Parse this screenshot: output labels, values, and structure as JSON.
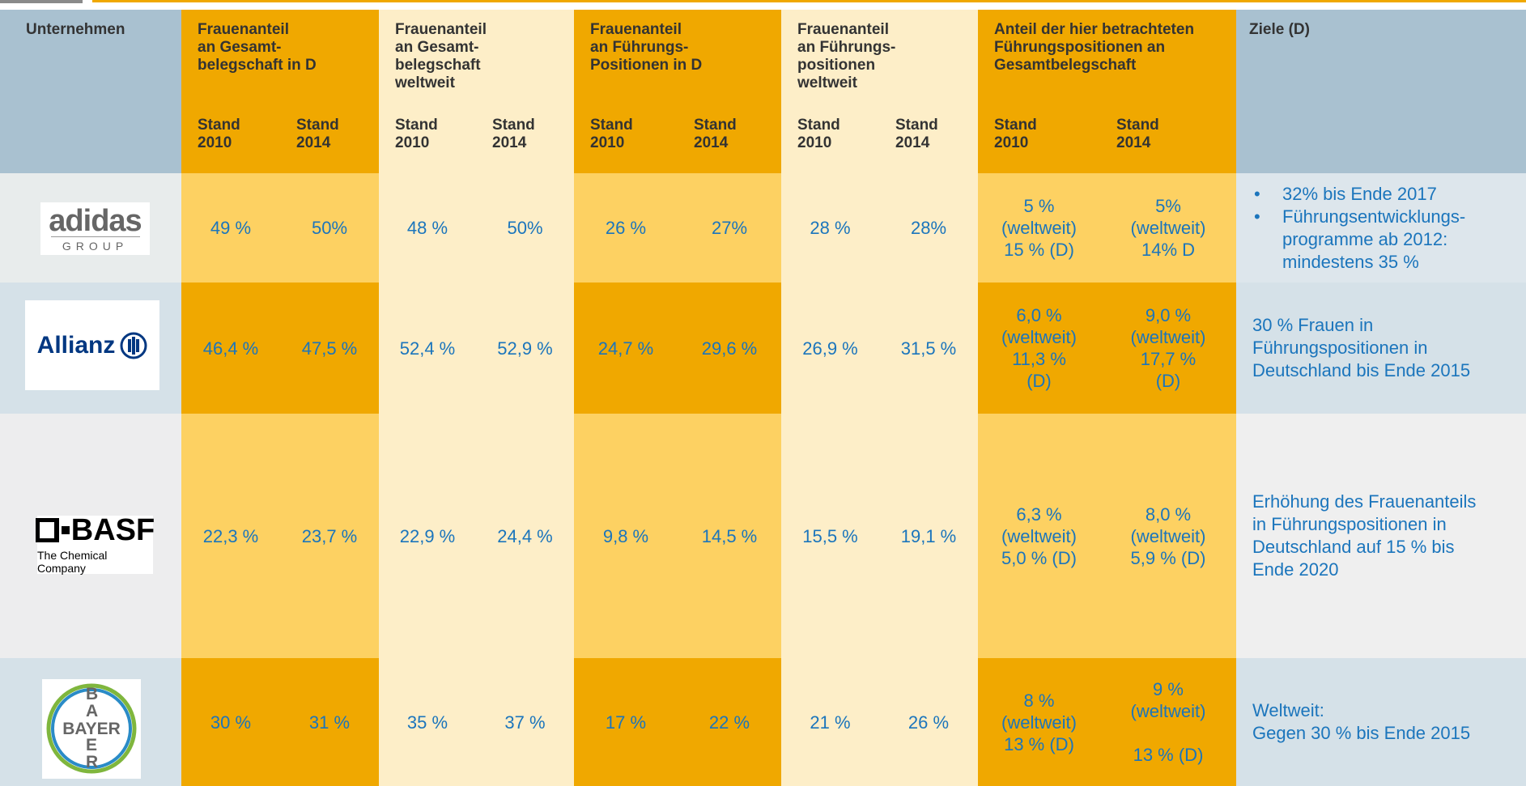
{
  "header": {
    "company": "Unternehmen",
    "goals": "Ziele (D)",
    "groups": [
      {
        "title": "Frauenanteil\nan Gesamt-\nbelegschaft in D",
        "sub": [
          "Stand\n2010",
          "Stand\n2014"
        ]
      },
      {
        "title": "Frauenanteil\nan Gesamt-\nbelegschaft\nweltweit",
        "sub": [
          "Stand\n2010",
          "Stand\n2014"
        ]
      },
      {
        "title": "Frauenanteil\nan Führungs-\nPositionen in D",
        "sub": [
          "Stand\n2010",
          "Stand\n2014"
        ]
      },
      {
        "title": "Frauenanteil\nan Führungs-\npositionen\nweltweit",
        "sub": [
          "Stand\n2010",
          "Stand\n2014"
        ]
      },
      {
        "title": "Anteil der hier betrachteten\nFührungspositionen an\nGesamtbelegschaft",
        "sub": [
          "Stand\n2010",
          "Stand\n2014"
        ]
      }
    ]
  },
  "rows": [
    {
      "logo": {
        "name": "adidas",
        "tag": "GROUP"
      },
      "cells": [
        "49 %",
        "50%",
        "48 %",
        "50%",
        "26 %",
        "27%",
        "28 %",
        "28%",
        "5 %\n(weltweit)\n15 % (D)",
        "5%\n(weltweit)\n14% D"
      ],
      "goals": [
        "32% bis Ende 2017",
        "Führungsentwicklungs-\nprogramme ab 2012:\nmindestens 35 %"
      ]
    },
    {
      "logo": {
        "name": "Allianz"
      },
      "cells": [
        "46,4  %",
        "47,5 %",
        "52,4 %",
        "52,9 %",
        "24,7 %",
        "29,6 %",
        "26,9 %",
        "31,5 %",
        "6,0 %\n(weltweit)\n11,3 %\n(D)",
        "9,0 %\n(weltweit)\n17,7 %\n(D)"
      ],
      "goals": "30 % Frauen in\nFührungspositionen in\nDeutschland bis Ende 2015"
    },
    {
      "logo": {
        "name": "BASF",
        "tag": "The Chemical Company"
      },
      "cells": [
        "22,3 %",
        "23,7 %",
        "22,9 %",
        "24,4 %",
        "9,8 %",
        "14,5 %",
        "15,5 %",
        "19,1 %",
        "6,3 %\n(weltweit)\n5,0 % (D)",
        "8,0 %\n(weltweit)\n5,9 % (D)"
      ],
      "goals": "Erhöhung des Frauenanteils\nin Führungspositionen in\nDeutschland auf 15 % bis\nEnde 2020"
    },
    {
      "logo": {
        "name": "BAYER",
        "vertical": "BAYER"
      },
      "cells": [
        "30 %",
        "31 %",
        "35 %",
        "37 %",
        "17 %",
        "22 %",
        "21 %",
        "26 %",
        "8 %\n(weltweit)\n13 % (D)",
        "9 %\n(weltweit)\n\n13 % (D)"
      ],
      "goals": "Weltweit:\nGegen 30 % bis Ende 2015"
    }
  ]
}
